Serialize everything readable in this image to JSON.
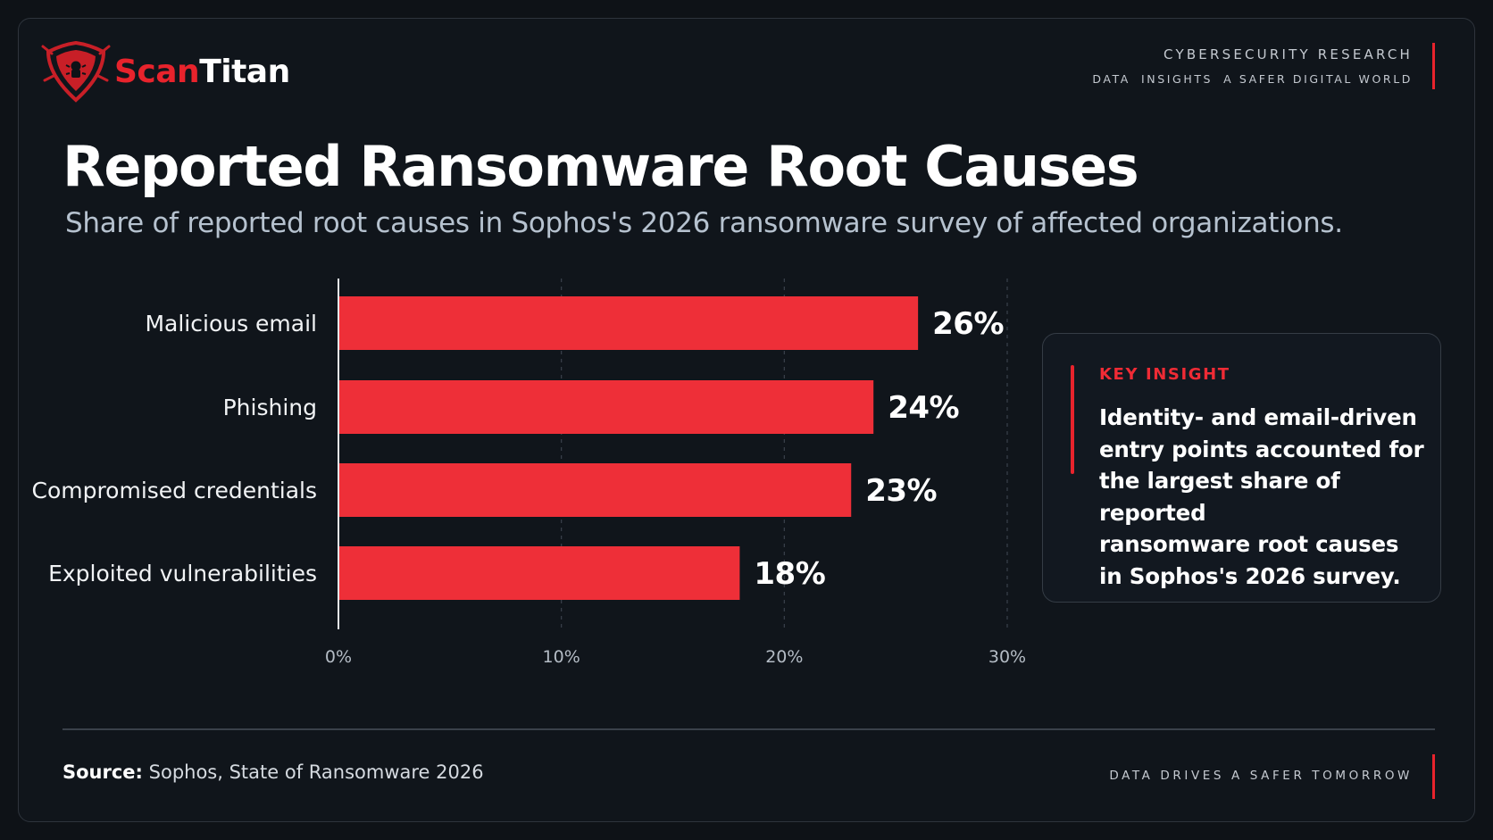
{
  "brand": {
    "name_part1": "Scan",
    "name_part2": "Titan",
    "accent": "#e8232c"
  },
  "header": {
    "line1": "CYBERSECURITY RESEARCH",
    "line2": [
      "DATA",
      "INSIGHTS",
      "A SAFER DIGITAL WORLD"
    ]
  },
  "title": "Reported Ransomware Root Causes",
  "subtitle": "Share of reported root causes in Sophos's 2026 ransomware survey of affected organizations.",
  "chart_data": {
    "type": "bar",
    "orientation": "horizontal",
    "categories": [
      "Malicious email",
      "Phishing",
      "Compromised credentials",
      "Exploited vulnerabilities"
    ],
    "values": [
      26,
      24,
      23,
      18
    ],
    "value_labels": [
      "26%",
      "24%",
      "23%",
      "18%"
    ],
    "xlim": [
      0,
      30
    ],
    "x_ticks": [
      0,
      10,
      20,
      30
    ],
    "x_tick_labels": [
      "0%",
      "10%",
      "20%",
      "30%"
    ],
    "grid": "vertical dashed",
    "bar_color": "#ee2f38"
  },
  "insight": {
    "heading": "KEY INSIGHT",
    "lines": [
      "Identity- and email-driven",
      "entry points accounted for",
      "the largest share of reported",
      "ransomware root causes",
      "in Sophos's 2026 survey."
    ]
  },
  "footer": {
    "source_label": "Source:",
    "source_text": "Sophos, State of Ransomware 2026",
    "tagline": "DATA DRIVES A SAFER TOMORROW"
  }
}
